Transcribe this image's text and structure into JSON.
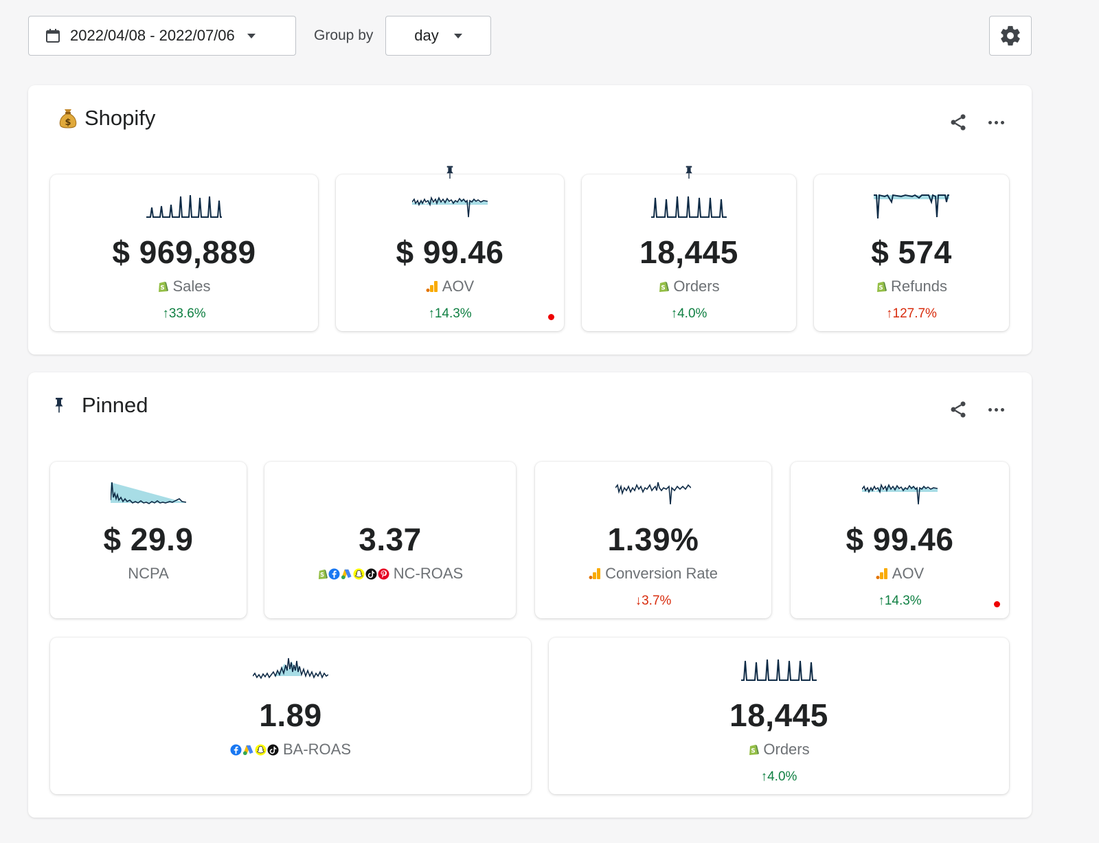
{
  "toolbar": {
    "date_range": "2022/04/08 - 2022/07/06",
    "group_by_label": "Group by",
    "group_by_value": "day"
  },
  "sections": {
    "shopify": {
      "title": "Shopify",
      "icon": "money-bag-icon",
      "cards": [
        {
          "value": "$ 969,889",
          "label": "Sales",
          "source_icon": "shopify-icon",
          "change": "↑33.6%",
          "change_color": "#108043"
        },
        {
          "value": "$ 99.46",
          "label": "AOV",
          "source_icon": "google-analytics-icon",
          "change": "↑14.3%",
          "change_color": "#108043",
          "pinned": true,
          "alert_dot": true
        },
        {
          "value": "18,445",
          "label": "Orders",
          "source_icon": "shopify-icon",
          "change": "↑4.0%",
          "change_color": "#108043",
          "pinned": true
        },
        {
          "value": "$ 574",
          "label": "Refunds",
          "source_icon": "shopify-icon",
          "change": "↑127.7%",
          "change_color": "#d82c0d"
        }
      ]
    },
    "pinned": {
      "title": "Pinned",
      "icon": "pin-icon",
      "cards": [
        {
          "value": "$ 29.9",
          "label": "NCPA"
        },
        {
          "value": "3.37",
          "label": "NC-ROAS",
          "source_icons": [
            "shopify-icon",
            "facebook-icon",
            "google-ads-icon",
            "snapchat-icon",
            "tiktok-icon",
            "pinterest-icon"
          ]
        },
        {
          "value": "1.39%",
          "label": "Conversion Rate",
          "source_icon": "google-analytics-icon",
          "change": "↓3.7%",
          "change_color": "#d82c0d"
        },
        {
          "value": "$ 99.46",
          "label": "AOV",
          "source_icon": "google-analytics-icon",
          "change": "↑14.3%",
          "change_color": "#108043",
          "alert_dot": true
        },
        {
          "value": "1.89",
          "label": "BA-ROAS",
          "source_icons": [
            "facebook-icon",
            "google-ads-icon",
            "snapchat-icon",
            "tiktok-icon"
          ]
        },
        {
          "value": "18,445",
          "label": "Orders",
          "source_icon": "shopify-icon",
          "change": "↑4.0%",
          "change_color": "#108043"
        }
      ]
    }
  },
  "colors": {
    "sparkline": "#0f2b46",
    "sparkfill": "#a8dde6",
    "positive": "#108043",
    "negative": "#d82c0d",
    "alert": "#e00000"
  }
}
